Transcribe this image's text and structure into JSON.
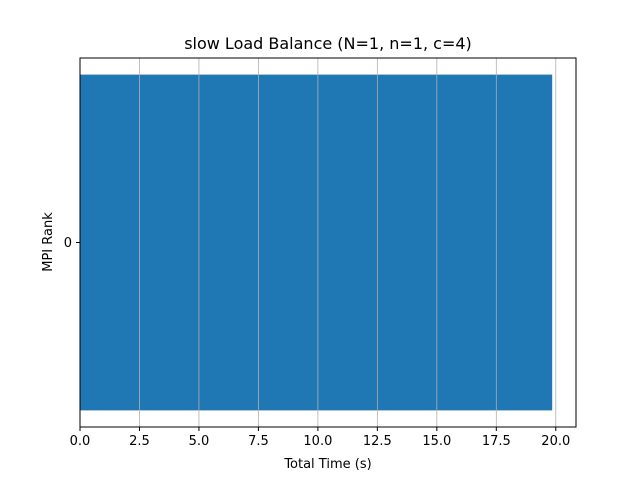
{
  "chart_data": {
    "type": "bar",
    "orientation": "horizontal",
    "title": "slow Load Balance (N=1, n=1, c=4)",
    "xlabel": "Total Time (s)",
    "ylabel": "MPI Rank",
    "categories": [
      "0"
    ],
    "values": [
      19.85
    ],
    "xlim": [
      0,
      20.85
    ],
    "xticks": [
      0.0,
      2.5,
      5.0,
      7.5,
      10.0,
      12.5,
      15.0,
      17.5,
      20.0
    ],
    "xtick_labels": [
      "0.0",
      "2.5",
      "5.0",
      "7.5",
      "10.0",
      "12.5",
      "15.0",
      "17.5",
      "20.0"
    ],
    "grid": "x",
    "bar_color": "#1f77b4",
    "grid_color": "#b0b0b0"
  }
}
